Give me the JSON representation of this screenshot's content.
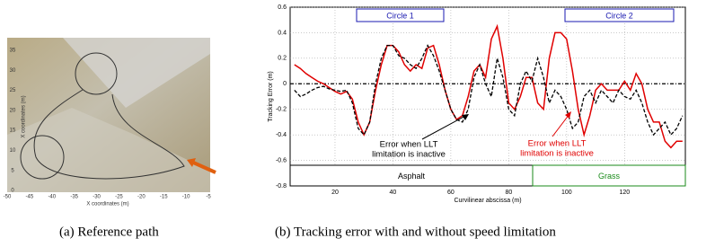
{
  "left_panel": {
    "caption": "(a)  Reference path",
    "x_label": "X coordinates (m)",
    "y_label": "X coordinates (m)",
    "xticks": [
      -50,
      -45,
      -40,
      -35,
      -30,
      -25,
      -20,
      -15,
      -10,
      -5
    ],
    "yticks": [
      0,
      5,
      10,
      15,
      20,
      25,
      30,
      35
    ]
  },
  "chart_data": {
    "type": "line",
    "caption": "(b)  Tracking error with and without speed limitation",
    "x_label": "Curvilinear abscissa (m)",
    "y_label": "Tracking Error (m)",
    "xlim": [
      4.5,
      141
    ],
    "ylim": [
      -0.8,
      0.6
    ],
    "xticks": [
      20,
      40,
      60,
      80,
      100,
      120
    ],
    "yticks": [
      -0.8,
      -0.6,
      -0.4,
      -0.2,
      0,
      0.2,
      0.4,
      0.6
    ],
    "grid": true,
    "zero_line": 0,
    "x": [
      6,
      8,
      10,
      12,
      14,
      16,
      18,
      20,
      22,
      24,
      26,
      28,
      30,
      32,
      34,
      36,
      38,
      40,
      42,
      44,
      46,
      48,
      50,
      52,
      54,
      56,
      58,
      60,
      62,
      64,
      66,
      68,
      70,
      72,
      74,
      76,
      78,
      80,
      82,
      84,
      86,
      88,
      90,
      92,
      94,
      96,
      98,
      100,
      102,
      104,
      106,
      108,
      110,
      112,
      114,
      116,
      118,
      120,
      122,
      124,
      126,
      128,
      130,
      132,
      134,
      136,
      138,
      140
    ],
    "series": [
      {
        "color": "#e00000",
        "style": "solid",
        "values": [
          0.15,
          0.12,
          0.08,
          0.05,
          0.02,
          0,
          -0.03,
          -0.06,
          -0.08,
          -0.06,
          -0.12,
          -0.3,
          -0.4,
          -0.3,
          -0.05,
          0.15,
          0.3,
          0.3,
          0.25,
          0.15,
          0.1,
          0.15,
          0.12,
          0.28,
          0.3,
          0.15,
          -0.05,
          -0.2,
          -0.28,
          -0.25,
          -0.1,
          0.1,
          0.15,
          0.05,
          0.35,
          0.45,
          0.2,
          -0.15,
          -0.2,
          -0.1,
          0.05,
          0.05,
          -0.15,
          -0.2,
          0.2,
          0.4,
          0.4,
          0.35,
          0.1,
          -0.2,
          -0.4,
          -0.25,
          -0.05,
          0,
          -0.05,
          -0.05,
          -0.05,
          0.02,
          -0.05,
          0.08,
          0,
          -0.2,
          -0.3,
          -0.3,
          -0.45,
          -0.5,
          -0.45,
          -0.45
        ]
      },
      {
        "color": "#000000",
        "style": "dashed",
        "values": [
          -0.05,
          -0.1,
          -0.08,
          -0.05,
          -0.03,
          -0.02,
          -0.04,
          -0.05,
          -0.06,
          -0.05,
          -0.15,
          -0.35,
          -0.4,
          -0.3,
          0,
          0.2,
          0.3,
          0.3,
          0.22,
          0.2,
          0.15,
          0.12,
          0.2,
          0.3,
          0.22,
          0.1,
          -0.05,
          -0.2,
          -0.28,
          -0.3,
          -0.2,
          0.05,
          0.15,
          0,
          -0.1,
          0.2,
          0.05,
          -0.2,
          -0.25,
          0,
          0.1,
          0.02,
          0.2,
          0.05,
          -0.15,
          -0.05,
          -0.1,
          -0.2,
          -0.35,
          -0.3,
          -0.1,
          -0.05,
          -0.15,
          -0.05,
          -0.1,
          -0.15,
          -0.05,
          -0.1,
          -0.12,
          -0.05,
          -0.15,
          -0.3,
          -0.4,
          -0.35,
          -0.3,
          -0.4,
          -0.35,
          -0.25
        ]
      }
    ],
    "annotations": {
      "black": [
        "Error when LLT",
        "limitation is inactive"
      ],
      "red": [
        "Error when LLT",
        "limitation is inactive"
      ]
    },
    "zones": {
      "circle_1": "Circle 1",
      "circle_2": "Circle 2",
      "asphalt": "Asphalt",
      "grass": "Grass"
    }
  }
}
